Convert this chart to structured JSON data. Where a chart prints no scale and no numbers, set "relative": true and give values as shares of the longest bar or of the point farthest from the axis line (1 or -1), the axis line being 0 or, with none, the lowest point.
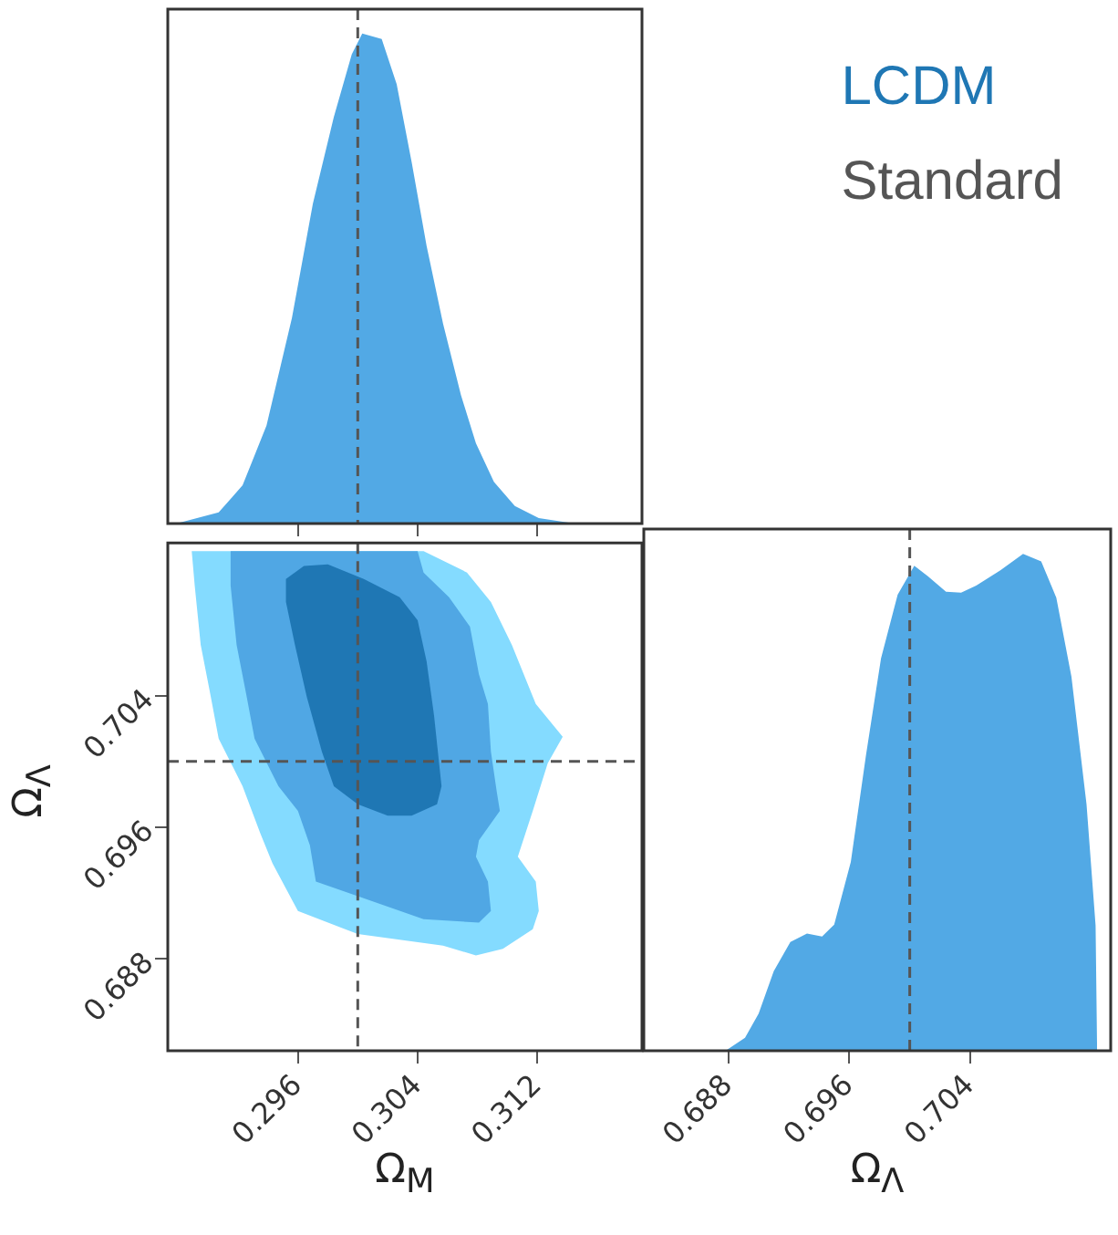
{
  "chart_data": [
    {
      "type": "area",
      "relative": true,
      "xlim": [
        0.2873,
        0.319
      ],
      "xticks": [
        0.296,
        0.304,
        0.312
      ],
      "tick_labels": false,
      "series": [
        {
          "color": "#52a9e5",
          "x": [
            0.2881,
            0.2907,
            0.2923,
            0.2939,
            0.2956,
            0.297,
            0.2984,
            0.2996,
            0.3003,
            0.3016,
            0.3026,
            0.3036,
            0.3046,
            0.3057,
            0.3069,
            0.3079,
            0.3091,
            0.3105,
            0.3121,
            0.3141,
            0.3182
          ],
          "values": [
            0.002,
            0.023,
            0.078,
            0.2,
            0.42,
            0.653,
            0.83,
            0.958,
            1,
            0.989,
            0.897,
            0.738,
            0.567,
            0.408,
            0.262,
            0.164,
            0.085,
            0.036,
            0.011,
            0.002,
            0
          ]
        }
      ],
      "ref_lines": [
        {
          "axis": "x",
          "value": 0.3,
          "color": "#555555",
          "line_style": "dashed"
        }
      ]
    },
    {
      "type": "area",
      "xlim": [
        0.2873,
        0.319
      ],
      "ylim": [
        0.6824,
        0.7133
      ],
      "xticks": [
        0.296,
        0.304,
        0.312
      ],
      "yticks": [
        0.688,
        0.696,
        0.704
      ],
      "xlabel": "Ω$_{M}$",
      "ylabel": "Ω$_{Λ}$",
      "legend": "top right",
      "series": [
        {
          "color": "#84dbff",
          "x": [
            0.2889,
            0.3044,
            0.3073,
            0.3089,
            0.3103,
            0.3119,
            0.3137,
            0.3127,
            0.3117,
            0.3107,
            0.3119,
            0.3121,
            0.3117,
            0.3097,
            0.3079,
            0.3057,
            0.3,
            0.296,
            0.2943,
            0.2935,
            0.2923,
            0.2907,
            0.2901,
            0.2895,
            0.2891
          ],
          "values": [
            0.7128,
            0.7128,
            0.7115,
            0.7097,
            0.7071,
            0.7035,
            0.7015,
            0.6999,
            0.697,
            0.6942,
            0.6927,
            0.6909,
            0.6898,
            0.6886,
            0.6882,
            0.6888,
            0.6895,
            0.6909,
            0.6938,
            0.6956,
            0.6985,
            0.7014,
            0.7043,
            0.7071,
            0.7107
          ]
        },
        {
          "color": "#50a7e4",
          "x": [
            0.2915,
            0.304,
            0.3044,
            0.3061,
            0.3075,
            0.3081,
            0.3087,
            0.3089,
            0.3093,
            0.3095,
            0.3081,
            0.3079,
            0.3087,
            0.3089,
            0.3081,
            0.3044,
            0.3,
            0.2972,
            0.2968,
            0.296,
            0.2947,
            0.2931,
            0.2925,
            0.2919,
            0.2915
          ],
          "values": [
            0.7128,
            0.7128,
            0.7115,
            0.71,
            0.7082,
            0.7053,
            0.7035,
            0.7006,
            0.6981,
            0.697,
            0.6952,
            0.6942,
            0.6927,
            0.6909,
            0.6902,
            0.6904,
            0.6918,
            0.6927,
            0.6949,
            0.697,
            0.6985,
            0.7014,
            0.7043,
            0.7071,
            0.7107
          ]
        },
        {
          "name": "LCDM",
          "color": "#1f77b4",
          "x": [
            0.2952,
            0.2964,
            0.298,
            0.3004,
            0.3028,
            0.304,
            0.3046,
            0.3051,
            0.3056,
            0.3053,
            0.3036,
            0.302,
            0.3,
            0.2984,
            0.2976,
            0.2966,
            0.2958,
            0.2952
          ],
          "values": [
            0.7111,
            0.7119,
            0.712,
            0.7111,
            0.71,
            0.7086,
            0.7061,
            0.7028,
            0.6985,
            0.6974,
            0.6967,
            0.6967,
            0.6974,
            0.6985,
            0.7006,
            0.7039,
            0.7071,
            0.7097
          ]
        }
      ],
      "ref_lines": [
        {
          "axis": "x",
          "value": 0.3,
          "label": "Standard",
          "color": "#555555",
          "line_style": "dashed"
        },
        {
          "axis": "y",
          "value": 0.7,
          "color": "#555555",
          "line_style": "dashed"
        }
      ]
    },
    {
      "type": "area",
      "relative": true,
      "xlim": [
        0.6824,
        0.7133
      ],
      "xticks": [
        0.688,
        0.696,
        0.704
      ],
      "tick_labels": "x",
      "xlabel": "Ω$_{Λ}$",
      "series": [
        {
          "color": "#52a9e5",
          "x": [
            0.6832,
            0.6879,
            0.6891,
            0.69,
            0.691,
            0.6921,
            0.6932,
            0.6942,
            0.695,
            0.6961,
            0.6971,
            0.6981,
            0.6992,
            0.7003,
            0.7012,
            0.7024,
            0.7034,
            0.7044,
            0.706,
            0.7075,
            0.7087,
            0.7097,
            0.7107,
            0.7117,
            0.7123,
            0.7124
          ],
          "values": [
            0.002,
            0.002,
            0.026,
            0.075,
            0.16,
            0.219,
            0.236,
            0.23,
            0.254,
            0.38,
            0.594,
            0.79,
            0.918,
            0.976,
            0.955,
            0.924,
            0.922,
            0.936,
            0.967,
            1,
            0.985,
            0.912,
            0.753,
            0.496,
            0.252,
            0
          ]
        }
      ],
      "ref_lines": [
        {
          "axis": "x",
          "value": 0.7,
          "color": "#555555",
          "line_style": "dashed"
        }
      ]
    }
  ]
}
